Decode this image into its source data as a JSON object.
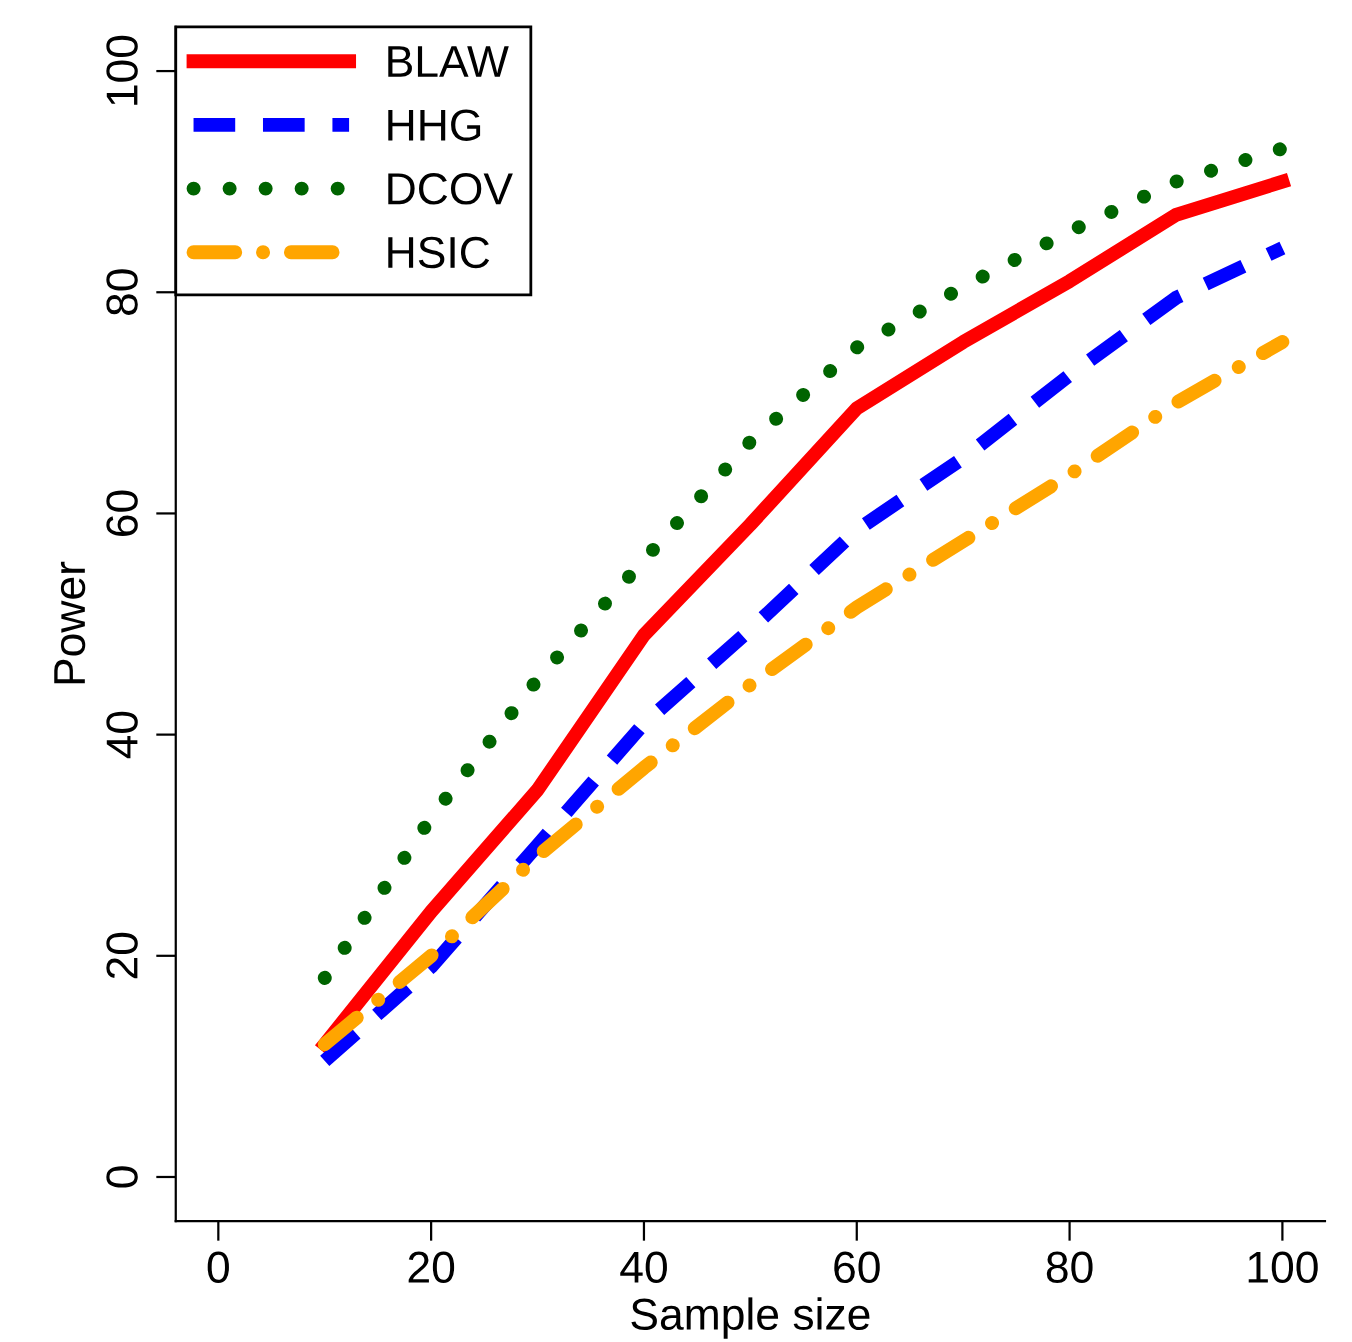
{
  "chart_data": {
    "type": "line",
    "xlabel": "Sample size",
    "ylabel": "Power",
    "x": [
      10,
      20,
      30,
      40,
      50,
      60,
      70,
      80,
      90,
      100
    ],
    "series": [
      {
        "name": "BLAW",
        "color": "#ff0000",
        "line_style": "solid",
        "values": [
          12,
          24,
          35,
          49,
          59,
          69.5,
          75.5,
          81,
          87,
          90
        ]
      },
      {
        "name": "HHG",
        "color": "#0000ff",
        "line_style": "dashed",
        "values": [
          10.5,
          19,
          30,
          41,
          49.5,
          58.5,
          65,
          72.5,
          79.5,
          84
        ]
      },
      {
        "name": "DCOV",
        "color": "#006400",
        "line_style": "dotted",
        "values": [
          18,
          32.5,
          45,
          55.8,
          66.5,
          75,
          80.5,
          85.5,
          90,
          93
        ]
      },
      {
        "name": "HSIC",
        "color": "#ffa500",
        "line_style": "dashdot",
        "values": [
          12,
          20,
          29,
          37,
          44.5,
          51.5,
          57.5,
          63.5,
          70,
          75.5
        ]
      }
    ],
    "xlim": [
      -4,
      104
    ],
    "ylim": [
      -4,
      104
    ],
    "xticks": [
      0,
      20,
      40,
      60,
      80,
      100
    ],
    "yticks": [
      0,
      20,
      40,
      60,
      80,
      100
    ],
    "grid": false,
    "legend": "top left",
    "marker": "none"
  }
}
